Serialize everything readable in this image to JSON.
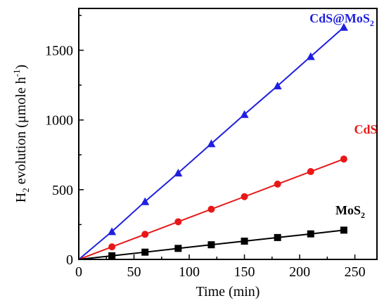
{
  "chart_data": {
    "type": "line",
    "xlabel": "Time (min)",
    "ylabel": {
      "main": "H",
      "sub": "2",
      "rest": " evolution (μmole h",
      "sup": "-1",
      "close": ")"
    },
    "xlim": [
      0,
      270
    ],
    "ylim": [
      0,
      1800
    ],
    "xticks": [
      0,
      50,
      100,
      150,
      200,
      250
    ],
    "yticks": [
      0,
      500,
      1000,
      1500
    ],
    "x_tick_labels": [
      "0",
      "50",
      "100",
      "150",
      "200",
      "250"
    ],
    "y_tick_labels": [
      "0",
      "500",
      "1000",
      "1500"
    ],
    "grid": false,
    "legend": "inline labels at right end of each series",
    "series": [
      {
        "name": "CdS@MoS2",
        "label_main": "CdS@MoS",
        "label_sub": "2",
        "color": "#1f1fe0",
        "marker": "triangle",
        "x": [
          0,
          30,
          60,
          90,
          120,
          150,
          180,
          210,
          240
        ],
        "y": [
          0,
          200,
          415,
          620,
          830,
          1040,
          1245,
          1455,
          1665
        ]
      },
      {
        "name": "CdS",
        "label_main": "CdS",
        "label_sub": "",
        "color": "#e81818",
        "marker": "circle",
        "x": [
          0,
          30,
          60,
          90,
          120,
          150,
          180,
          210,
          240
        ],
        "y": [
          0,
          90,
          180,
          270,
          360,
          450,
          540,
          630,
          720
        ]
      },
      {
        "name": "MoS2",
        "label_main": "MoS",
        "label_sub": "2",
        "color": "#000000",
        "marker": "square",
        "x": [
          0,
          30,
          60,
          90,
          120,
          150,
          180,
          210,
          240
        ],
        "y": [
          0,
          26,
          52,
          79,
          105,
          131,
          157,
          183,
          210
        ]
      }
    ]
  }
}
